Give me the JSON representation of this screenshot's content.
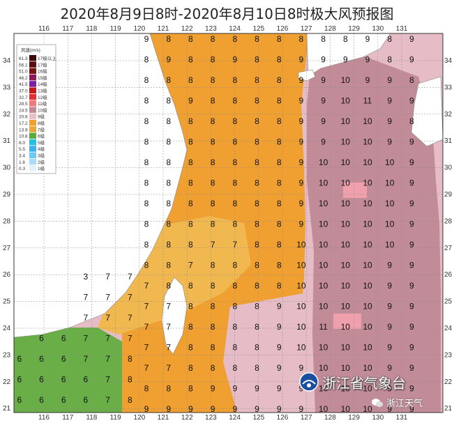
{
  "title": "2020年8月9日8时-2020年8月10日8时极大风预报图",
  "lon_ticks": [
    "116",
    "117",
    "118",
    "119",
    "120",
    "121",
    "122",
    "123",
    "124",
    "125",
    "126",
    "127",
    "128",
    "129",
    "130",
    "131"
  ],
  "lat_ticks": [
    "34",
    "33",
    "32",
    "31",
    "30",
    "29",
    "28",
    "27",
    "26",
    "25",
    "24",
    "23",
    "22",
    "21"
  ],
  "legend": {
    "title": "风速(m/s)",
    "items": [
      {
        "v": "61.3",
        "lvl": "17级以上",
        "color": "#3d0a0a"
      },
      {
        "v": "56.1",
        "lvl": "17级",
        "color": "#5a1010"
      },
      {
        "v": "51.0",
        "lvl": "16级",
        "color": "#7a1515"
      },
      {
        "v": "46.2",
        "lvl": "15级",
        "color": "#8b1a5a"
      },
      {
        "v": "41.5",
        "lvl": "14级",
        "color": "#7a20a0"
      },
      {
        "v": "37.0",
        "lvl": "13级",
        "color": "#c01a1a"
      },
      {
        "v": "32.7",
        "lvl": "12级",
        "color": "#e03030"
      },
      {
        "v": "28.5",
        "lvl": "11级",
        "color": "#f07878"
      },
      {
        "v": "24.5",
        "lvl": "10级",
        "color": "#c08a98"
      },
      {
        "v": "20.8",
        "lvl": "9级",
        "color": "#e8c0c8"
      },
      {
        "v": "17.2",
        "lvl": "8级",
        "color": "#f0a030"
      },
      {
        "v": "13.9",
        "lvl": "7级",
        "color": "#e8a838"
      },
      {
        "v": "10.8",
        "lvl": "6级",
        "color": "#5aa840"
      },
      {
        "v": "8.0",
        "lvl": "5级",
        "color": "#28c0e0"
      },
      {
        "v": "5.5",
        "lvl": "4级",
        "color": "#40b0e8"
      },
      {
        "v": "3.4",
        "lvl": "3级",
        "color": "#70c8f0"
      },
      {
        "v": "1.6",
        "lvl": "2级",
        "color": "#a8dcf8"
      },
      {
        "v": "0.3",
        "lvl": "1级",
        "color": "#e0f0fc"
      }
    ]
  },
  "grid_values": [
    "  9 8 8 8 8 8 8 8 8 8 9 8 9",
    "  8 9 8 8 9 8 8 9 9 9 9 8 9",
    "  8 8 8 8 8 8 8 9 9 10 9 9 8",
    "  8 8 9 8 8 8 8 9 9 10 11 9 9",
    "  8 8 8 8 8 8 8 9 9 10 10 9 8",
    "  8 8 8 8 8 8 8 9 9 10 10 9 9",
    "  8 8 8 8 8 8 8 9 10 10 10 10 9",
    "  8 8 8 8 8 8 8 9 10 10 10 10 9",
    "  8 8 8 8 8 8 8 9 10 10 10 10 9",
    "  8 8 8 8 8 8 8 9 10 10 10 10 9",
    "  8 8 8 7 7 8 8 10 10 10 10 10 9",
    "  8 8 7 8 8 8 8 10 10 10 10 9 9",
    "  7 8 8 8 8 8 8 10 10 10 10 9 9",
    "  7 7 8 8 8 8 9 10 10 10 10 9 9",
    "  7 7 8 8 8 8 9 10 11 10 10 9 9",
    "  7 7 8 8 8 8 9 10 10 10 10 9 9",
    "  7 7 8 8 8 8 9 9 10 10 10 9 9",
    "  8 8 8 9 9 9 9 9 10 10 10 9 9",
    "  9 9 9 9 9 9 9 9 10 10 10 9 9"
  ],
  "west_values": [
    [
      "3",
      "7",
      "7"
    ],
    [
      "7",
      "7",
      "7"
    ],
    [
      "7",
      "7",
      "7"
    ],
    [
      "6",
      "6",
      "7",
      "7",
      "7"
    ],
    [
      "6",
      "6",
      "6",
      "7",
      "7",
      "8"
    ],
    [
      "6",
      "6",
      "6",
      "6",
      "7",
      "8"
    ],
    [
      "6",
      "6",
      "6",
      "6",
      "7",
      "8"
    ]
  ],
  "brand": "浙江省气象台",
  "watermark": "浙江天气"
}
